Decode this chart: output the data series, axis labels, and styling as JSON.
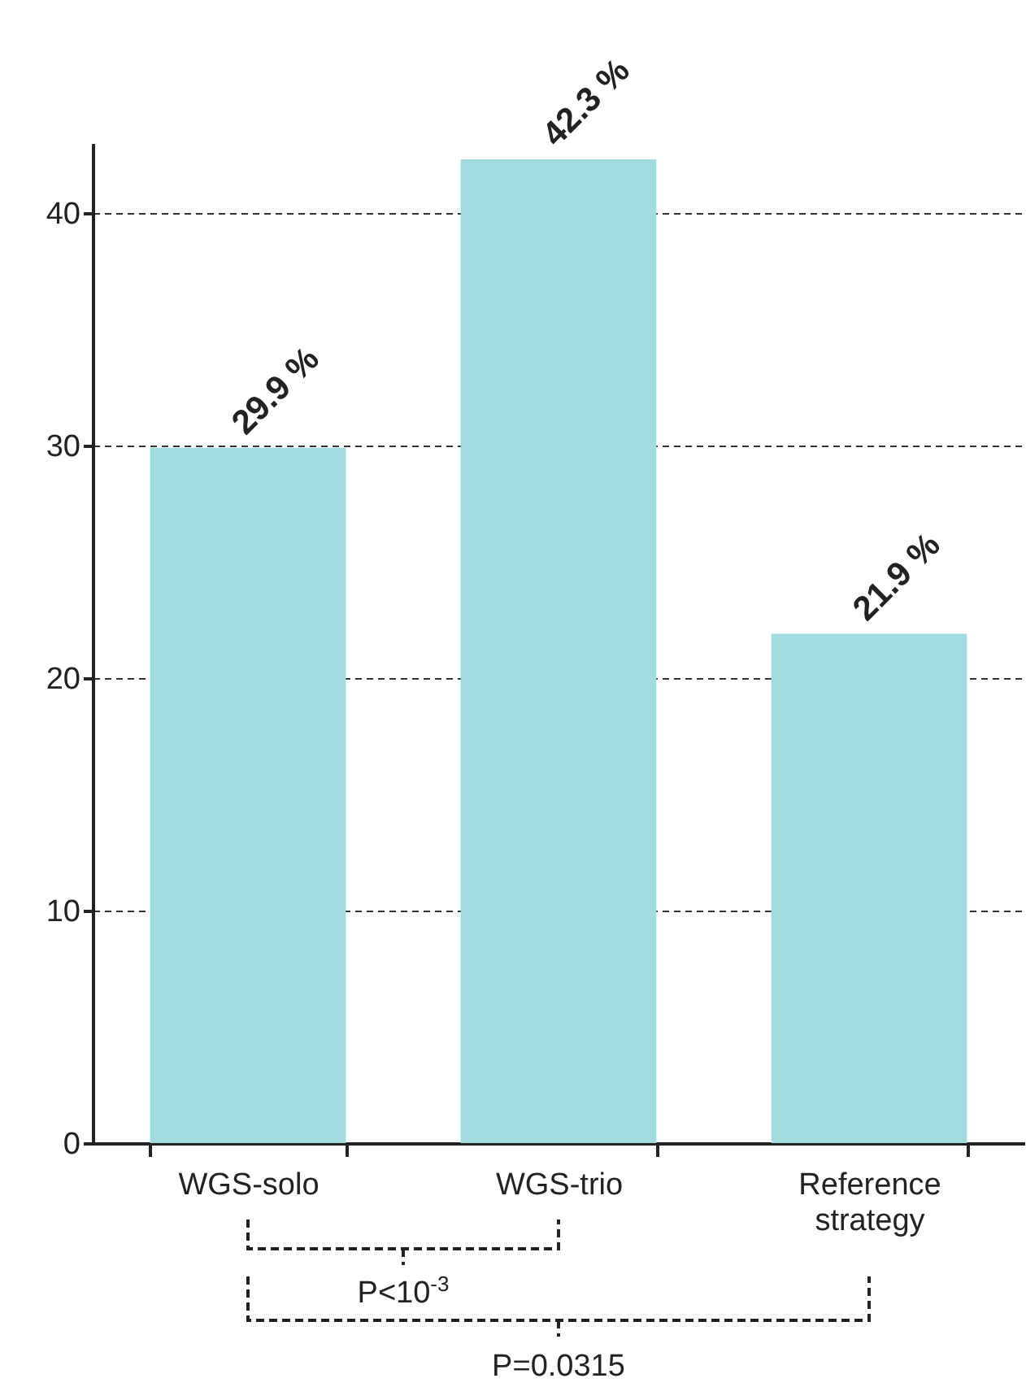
{
  "chart_data": {
    "type": "bar",
    "categories": [
      "WGS-solo",
      "WGS-trio",
      "Reference strategy"
    ],
    "values": [
      29.9,
      42.3,
      21.9
    ],
    "color": "#a0dbe0",
    "value_labels": [
      "29.9 %",
      "42.3 %",
      "21.9 %"
    ],
    "ylim": [
      0,
      43
    ],
    "yticks": [
      0,
      10,
      20,
      30,
      40
    ],
    "grid": "y",
    "annotations": [
      "P<10$^{-3}$",
      "P=0.0315"
    ]
  }
}
